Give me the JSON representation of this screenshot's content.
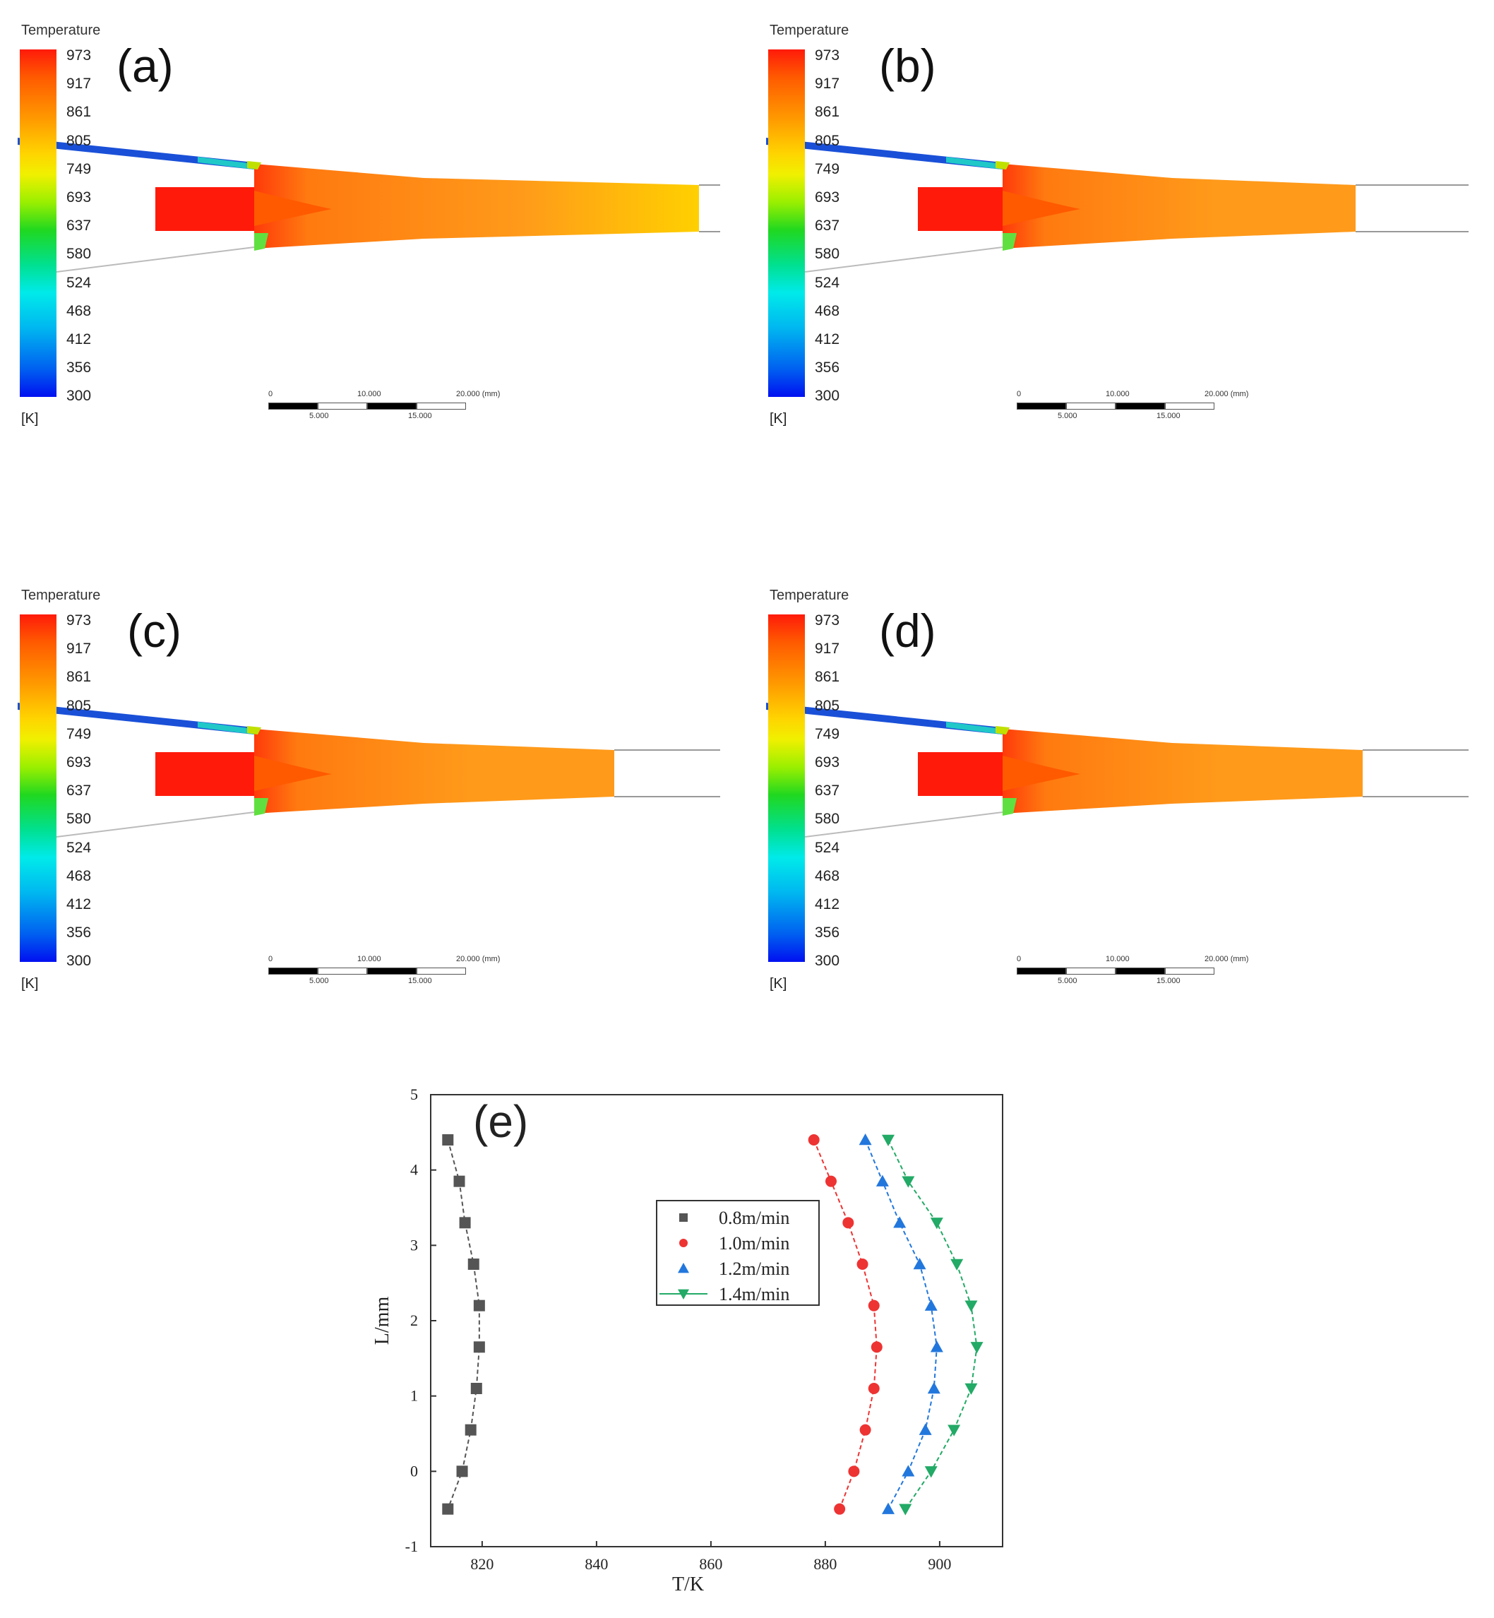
{
  "colorbar": {
    "title": "Temperature",
    "unit": "[K]",
    "ticks": [
      "973",
      "917",
      "861",
      "805",
      "749",
      "693",
      "637",
      "580",
      "524",
      "468",
      "412",
      "356",
      "300"
    ]
  },
  "panels": [
    {
      "label": "(a)",
      "ticks": [
        "973",
        "917",
        "861",
        "805",
        "749",
        "693",
        "637",
        "580",
        "524",
        "468",
        "412",
        "356",
        "300"
      ]
    },
    {
      "label": "(b)",
      "ticks": [
        "973",
        "917",
        "861",
        "805",
        "749",
        "693",
        "637",
        "580",
        "524",
        "468",
        "412",
        "356",
        "300"
      ]
    },
    {
      "label": "(c)",
      "ticks": [
        "973",
        "917",
        "861",
        "805",
        "749",
        "693",
        "637",
        "580",
        "524",
        "468",
        "412",
        "356",
        "300"
      ]
    },
    {
      "label": "(d)",
      "ticks": [
        "973",
        "917",
        "861",
        "805",
        "749",
        "693",
        "637",
        "580",
        "524",
        "468",
        "412",
        "356",
        "300"
      ]
    }
  ],
  "scale_bar": {
    "top_labels": [
      "0",
      "10.000",
      "20.000 (mm)"
    ],
    "bottom_labels": [
      "5.000",
      "15.000"
    ]
  },
  "chart_data": {
    "type": "scatter",
    "label": "(e)",
    "xlabel": "T/K",
    "ylabel": "L/mm",
    "x_ticks": [
      "820",
      "840",
      "860",
      "880",
      "900"
    ],
    "y_ticks": [
      "-1",
      "0",
      "1",
      "2",
      "3",
      "4",
      "5"
    ],
    "xlim": [
      811,
      911
    ],
    "ylim": [
      -1,
      5
    ],
    "series": [
      {
        "name": "0.8m/min",
        "color": "#555555",
        "marker": "square",
        "x": [
          814,
          816,
          817,
          818.5,
          819.5,
          819.5,
          819,
          818,
          816.5,
          814
        ],
        "y": [
          4.4,
          3.85,
          3.3,
          2.75,
          2.2,
          1.65,
          1.1,
          0.55,
          0.0,
          -0.5
        ]
      },
      {
        "name": "1.0m/min",
        "color": "#ee3333",
        "marker": "circle",
        "x": [
          878,
          881,
          884,
          886.5,
          888.5,
          889,
          888.5,
          887,
          885,
          882.5
        ],
        "y": [
          4.4,
          3.85,
          3.3,
          2.75,
          2.2,
          1.65,
          1.1,
          0.55,
          0.0,
          -0.5
        ]
      },
      {
        "name": "1.2m/min",
        "color": "#2277dd",
        "marker": "triangle-up",
        "x": [
          887,
          890,
          893,
          896.5,
          898.5,
          899.5,
          899,
          897.5,
          894.5,
          891
        ],
        "y": [
          4.4,
          3.85,
          3.3,
          2.75,
          2.2,
          1.65,
          1.1,
          0.55,
          0.0,
          -0.5
        ]
      },
      {
        "name": "1.4m/min",
        "color": "#22aa66",
        "marker": "triangle-down",
        "x": [
          891,
          894.5,
          899.5,
          903,
          905.5,
          906.5,
          905.5,
          902.5,
          898.5,
          894
        ],
        "y": [
          4.4,
          3.85,
          3.3,
          2.75,
          2.2,
          1.65,
          1.1,
          0.55,
          0.0,
          -0.5
        ]
      }
    ]
  }
}
